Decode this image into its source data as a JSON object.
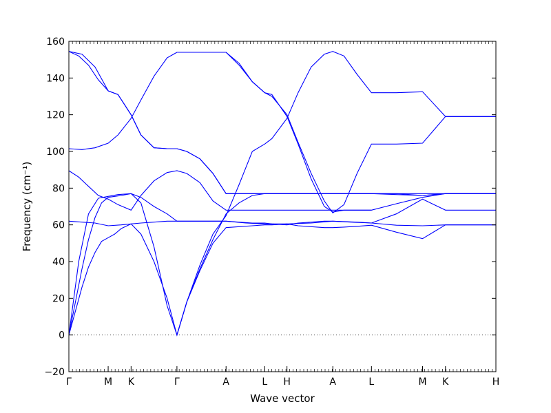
{
  "chart_data": {
    "type": "line",
    "title": "",
    "xlabel": "Wave vector",
    "ylabel": "Frequency (cm⁻¹)",
    "ylim": [
      -20,
      160
    ],
    "yticks": [
      -20,
      0,
      20,
      40,
      60,
      80,
      100,
      120,
      140,
      160
    ],
    "grid": false,
    "zero_line": {
      "y": 0,
      "style": "dotted"
    },
    "kpoints": [
      {
        "label": "Γ",
        "pos": 0
      },
      {
        "label": "M",
        "pos": 0.6
      },
      {
        "label": "K",
        "pos": 0.95
      },
      {
        "label": "Γ",
        "pos": 1.65
      },
      {
        "label": "A",
        "pos": 2.4
      },
      {
        "label": "L",
        "pos": 2.99
      },
      {
        "label": "H",
        "pos": 3.33
      },
      {
        "label": "A",
        "pos": 4.03
      },
      {
        "label": "L",
        "pos": 4.62
      },
      {
        "label": "M",
        "pos": 5.4
      },
      {
        "label": "K",
        "pos": 5.75
      },
      {
        "label": "H",
        "pos": 6.52
      }
    ],
    "series": [
      {
        "x": [
          0,
          0.1,
          0.2,
          0.3,
          0.4,
          0.5,
          0.6,
          0.7,
          0.8,
          0.95,
          1.1,
          1.3,
          1.5,
          1.65,
          1.8,
          2.0,
          2.2,
          2.4,
          2.6,
          2.8,
          2.99,
          3.1,
          3.33,
          3.5,
          3.7,
          3.9,
          4.03,
          4.2,
          4.4,
          4.62,
          5.0,
          5.4,
          5.75,
          6.52
        ],
        "y": [
          0,
          18,
          36,
          52,
          64,
          72,
          75,
          75.5,
          76,
          77,
          75,
          70,
          66,
          62,
          62,
          62,
          62,
          62,
          61.5,
          61,
          61,
          60.5,
          60,
          61,
          61.5,
          62,
          62,
          61.8,
          61.5,
          61,
          59.8,
          59.5,
          60,
          60
        ]
      },
      {
        "x": [
          0,
          0.1,
          0.2,
          0.3,
          0.4,
          0.5,
          0.6,
          0.7,
          0.8,
          0.95,
          1.1,
          1.3,
          1.5,
          1.65,
          1.8,
          2.0,
          2.2,
          2.4,
          2.6,
          2.8,
          2.99,
          3.1,
          3.33,
          3.5,
          3.7,
          3.9,
          4.03,
          4.2,
          4.4,
          4.62,
          5.0,
          5.4,
          5.75,
          6.52
        ],
        "y": [
          0,
          13,
          26,
          37,
          45,
          51,
          53,
          55,
          58,
          60.5,
          55,
          40,
          20,
          0,
          18,
          35,
          50,
          58.5,
          59,
          59.5,
          60,
          60,
          60.5,
          59.5,
          59,
          58.5,
          58.5,
          58.8,
          59.2,
          59.8,
          56,
          52.5,
          60,
          60
        ]
      },
      {
        "x": [
          0,
          0.2,
          0.4,
          0.6,
          0.8,
          0.95,
          1.1,
          1.3,
          1.5,
          1.65,
          1.8,
          2.0,
          2.2,
          2.4,
          2.7,
          3.0,
          3.33,
          3.7,
          4.03,
          4.3,
          4.62,
          5.0,
          5.4,
          5.75,
          6.52
        ],
        "y": [
          62,
          61.5,
          61,
          59.5,
          60,
          60.5,
          61,
          61.5,
          62,
          62,
          62,
          62,
          62,
          62,
          61,
          60.5,
          60.5,
          61,
          62,
          61.5,
          61,
          66,
          74,
          68,
          68
        ]
      },
      {
        "x": [
          0,
          0.15,
          0.3,
          0.45,
          0.6,
          0.75,
          0.95,
          1.1,
          1.3,
          1.5,
          1.65,
          1.8,
          2.0,
          2.2,
          2.4,
          2.7,
          3.0,
          3.33,
          3.7,
          4.03,
          4.3,
          4.62,
          5.0,
          5.4,
          5.75,
          6.52
        ],
        "y": [
          89.5,
          86,
          81,
          76,
          74,
          71,
          68,
          76,
          84,
          88.5,
          89.5,
          88,
          83,
          73,
          68,
          68,
          68,
          68,
          68,
          68,
          68,
          68,
          71.5,
          75,
          77,
          77
        ]
      },
      {
        "x": [
          0,
          0.15,
          0.3,
          0.45,
          0.6,
          0.75,
          0.95,
          1.1,
          1.3,
          1.5,
          1.65,
          1.8,
          2.0,
          2.2,
          2.4,
          2.6,
          2.8,
          2.99,
          3.1,
          3.2,
          3.33,
          3.5,
          3.7,
          3.9,
          4.03,
          4.2,
          4.4,
          4.62,
          5.0,
          5.4,
          5.75,
          6.52
        ],
        "y": [
          0,
          40,
          66,
          74.5,
          75.5,
          76.5,
          77,
          72,
          48,
          16,
          0,
          18,
          36,
          52,
          66,
          72,
          76,
          77,
          77,
          77,
          77,
          77,
          77,
          77,
          77,
          77,
          77,
          77,
          76.5,
          76,
          77,
          77
        ]
      },
      {
        "x": [
          0,
          0.2,
          0.4,
          0.6,
          0.75,
          0.95,
          1.1,
          1.3,
          1.5,
          1.65,
          1.8,
          2.0,
          2.2,
          2.4,
          2.6,
          2.8,
          2.99,
          3.1,
          3.33,
          3.5,
          3.7,
          3.9,
          4.03,
          4.2,
          4.4,
          4.62,
          5.0,
          5.4,
          5.75,
          6.52
        ],
        "y": [
          101.5,
          101,
          102,
          104.5,
          109,
          118,
          128,
          141,
          151,
          154,
          154,
          154,
          154,
          154,
          148,
          138,
          132,
          130,
          120,
          105,
          88,
          73,
          66.5,
          71,
          88,
          104,
          104,
          104.5,
          119,
          119
        ]
      },
      {
        "x": [
          0,
          0.15,
          0.3,
          0.45,
          0.6,
          0.75,
          0.95,
          1.1,
          1.3,
          1.5,
          1.65,
          1.8,
          2.0,
          2.2,
          2.4,
          2.6,
          2.8,
          2.99,
          3.1,
          3.33,
          3.5,
          3.7,
          3.9,
          4.03,
          4.2,
          4.4,
          4.62,
          5.0,
          5.4,
          5.75,
          6.52
        ],
        "y": [
          154.5,
          152,
          147,
          139,
          133,
          131,
          120,
          109,
          102,
          101.5,
          101.5,
          100,
          96,
          88,
          77,
          77,
          77,
          77,
          77,
          77,
          77,
          77,
          77,
          77,
          77,
          77,
          77,
          77,
          76,
          77,
          77
        ]
      },
      {
        "x": [
          0,
          0.2,
          0.4,
          0.6,
          0.75,
          0.95,
          1.1,
          1.3,
          1.5,
          1.65,
          1.8,
          2.0,
          2.2,
          2.4,
          2.6,
          2.8,
          2.99,
          3.1,
          3.33,
          3.5,
          3.7,
          3.9,
          4.03,
          4.2,
          4.4,
          4.62,
          5.0,
          5.4,
          5.75,
          6.52
        ],
        "y": [
          154.5,
          153,
          146,
          133,
          131,
          120,
          109,
          102,
          101.5,
          101.5,
          100,
          96,
          88,
          77,
          77,
          77,
          77,
          77,
          77,
          77,
          77,
          77,
          77,
          77,
          77,
          77,
          77,
          77,
          77,
          77
        ]
      },
      {
        "x": [
          1.65,
          1.8,
          2.0,
          2.2,
          2.4,
          2.6,
          2.8,
          2.99,
          3.1,
          3.33,
          3.5,
          3.7,
          3.9,
          4.03,
          4.2,
          4.4,
          4.62,
          5.0,
          5.4,
          5.75,
          6.52
        ],
        "y": [
          0,
          18,
          38,
          55,
          65,
          82,
          100,
          104,
          107,
          118,
          132,
          146,
          153,
          154.5,
          152,
          142,
          132,
          132,
          132.5,
          119,
          119
        ]
      },
      {
        "x": [
          2.4,
          2.6,
          2.8,
          2.99,
          3.1,
          3.33,
          3.5,
          3.7,
          3.9,
          4.03,
          4.2,
          4.4,
          4.62
        ],
        "y": [
          154,
          147,
          138,
          132,
          131,
          119,
          104,
          85,
          70,
          67,
          68,
          68,
          68
        ]
      }
    ]
  }
}
